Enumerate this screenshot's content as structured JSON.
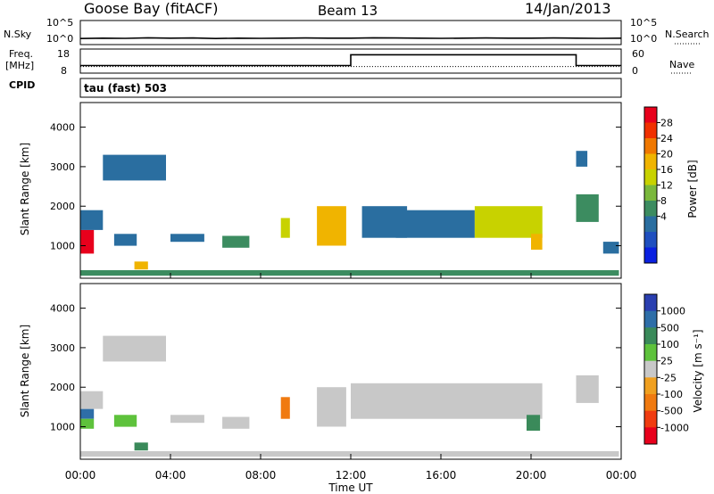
{
  "header": {
    "station": "Goose Bay (fitACF)",
    "beam": "Beam 13",
    "date": "14/Jan/2013"
  },
  "noise_panel": {
    "left_label": "N.Sky",
    "right_label": "N.Search",
    "left_ticks": [
      "10^5",
      "10^0"
    ],
    "right_ticks": [
      "10^5",
      "10^0"
    ]
  },
  "freq_panel": {
    "left_label_1": "Freq.",
    "left_label_2": "[MHz]",
    "right_label": "Nave",
    "left_ticks": [
      "18",
      "8"
    ],
    "right_ticks": [
      "60",
      "0"
    ]
  },
  "cpid": {
    "label": "CPID",
    "value": "tau (fast) 503"
  },
  "colorbars": {
    "power": {
      "label": "Power [dB]",
      "ticks": [
        "28",
        "24",
        "20",
        "16",
        "12",
        "8",
        "4"
      ],
      "colors": [
        "#e8001c",
        "#f03000",
        "#f07800",
        "#f0b400",
        "#c8d200",
        "#7ab83c",
        "#3c8c60",
        "#2a6ea0",
        "#1f4fbf",
        "#0a20e0"
      ]
    },
    "velocity": {
      "label": "Velocity [m s⁻¹]",
      "ticks": [
        "1000",
        "500",
        "100",
        "25",
        "-25",
        "-100",
        "-500",
        "-1000"
      ],
      "colors": [
        "#2a3fb0",
        "#2e6ea8",
        "#3a8a5a",
        "#5ec23c",
        "#c8c8c8",
        "#f0a020",
        "#f07a10",
        "#f03c10",
        "#e8001c"
      ]
    }
  },
  "axes": {
    "ylabel": "Slant Range [km]",
    "yticks": [
      "4000",
      "3000",
      "2000",
      "1000"
    ],
    "xticks": [
      "00:00",
      "04:00",
      "08:00",
      "12:00",
      "16:00",
      "20:00",
      "00:00"
    ],
    "xlabel": "Time UT"
  },
  "chart_data": [
    {
      "type": "line",
      "name": "noise",
      "x_hours": [
        0,
        1,
        2,
        3,
        4,
        5,
        6,
        7,
        8,
        9,
        10,
        11,
        12,
        13,
        14,
        15,
        16,
        17,
        18,
        19,
        20,
        21,
        22,
        23,
        24
      ],
      "n_sky_log10": [
        0.7,
        0.8,
        0.75,
        0.9,
        0.8,
        0.85,
        0.7,
        0.8,
        0.75,
        0.8,
        0.85,
        0.8,
        0.8,
        0.9,
        0.85,
        0.8,
        0.75,
        0.8,
        0.85,
        0.8,
        0.8,
        0.85,
        0.8,
        0.75,
        0.8
      ]
    },
    {
      "type": "line",
      "name": "frequency",
      "x_hours": [
        0,
        12,
        12,
        22,
        22,
        24
      ],
      "freq_mhz": [
        10.5,
        10.5,
        16,
        16,
        10.5,
        10.5
      ],
      "nave": [
        12,
        12,
        12,
        12,
        12,
        12
      ],
      "ylim_freq": [
        8,
        18
      ],
      "ylim_nave": [
        0,
        60
      ]
    },
    {
      "type": "heatmap",
      "name": "power",
      "xlim_hours": [
        0,
        24
      ],
      "ylim_km": [
        200,
        4600
      ],
      "units": "dB",
      "regions": [
        {
          "t0": 0.0,
          "t1": 0.6,
          "r0": 800,
          "r1": 1400,
          "val": 28
        },
        {
          "t0": 0.0,
          "t1": 1.0,
          "r0": 1400,
          "r1": 1900,
          "val": 8
        },
        {
          "t0": 1.0,
          "t1": 3.8,
          "r0": 2650,
          "r1": 3300,
          "val": 8
        },
        {
          "t0": 1.5,
          "t1": 2.5,
          "r0": 1000,
          "r1": 1300,
          "val": 8
        },
        {
          "t0": 2.4,
          "t1": 3.0,
          "r0": 400,
          "r1": 600,
          "val": 20
        },
        {
          "t0": 4.0,
          "t1": 5.5,
          "r0": 1100,
          "r1": 1300,
          "val": 8
        },
        {
          "t0": 6.3,
          "t1": 7.5,
          "r0": 950,
          "r1": 1250,
          "val": 12
        },
        {
          "t0": 8.9,
          "t1": 9.3,
          "r0": 1200,
          "r1": 1700,
          "val": 16
        },
        {
          "t0": 10.5,
          "t1": 11.8,
          "r0": 1000,
          "r1": 2000,
          "val": 20
        },
        {
          "t0": 12.5,
          "t1": 14.5,
          "r0": 1200,
          "r1": 2000,
          "val": 8
        },
        {
          "t0": 14.0,
          "t1": 17.5,
          "r0": 1200,
          "r1": 1900,
          "val": 8
        },
        {
          "t0": 17.5,
          "t1": 20.5,
          "r0": 1200,
          "r1": 2000,
          "val": 16
        },
        {
          "t0": 20.0,
          "t1": 20.5,
          "r0": 900,
          "r1": 1300,
          "val": 20
        },
        {
          "t0": 22.0,
          "t1": 22.5,
          "r0": 3000,
          "r1": 3400,
          "val": 8
        },
        {
          "t0": 22.0,
          "t1": 23.0,
          "r0": 1600,
          "r1": 2300,
          "val": 12
        },
        {
          "t0": 23.2,
          "t1": 23.9,
          "r0": 800,
          "r1": 1100,
          "val": 8
        },
        {
          "t0": 0.0,
          "t1": 23.9,
          "r0": 240,
          "r1": 380,
          "val": 12
        }
      ]
    },
    {
      "type": "heatmap",
      "name": "velocity",
      "xlim_hours": [
        0,
        24
      ],
      "ylim_km": [
        200,
        4600
      ],
      "units": "m s-1",
      "regions": [
        {
          "t0": 0.0,
          "t1": 0.6,
          "r0": 1200,
          "r1": 1450,
          "val": 900
        },
        {
          "t0": 0.0,
          "t1": 0.6,
          "r0": 950,
          "r1": 1200,
          "val": 80
        },
        {
          "t0": 0.0,
          "t1": 1.0,
          "r0": 1450,
          "r1": 1900,
          "val": 0
        },
        {
          "t0": 1.0,
          "t1": 3.8,
          "r0": 2650,
          "r1": 3300,
          "val": 0
        },
        {
          "t0": 1.5,
          "t1": 2.5,
          "r0": 1000,
          "r1": 1300,
          "val": 40
        },
        {
          "t0": 2.4,
          "t1": 3.0,
          "r0": 400,
          "r1": 600,
          "val": 100
        },
        {
          "t0": 4.0,
          "t1": 5.5,
          "r0": 1100,
          "r1": 1300,
          "val": 0
        },
        {
          "t0": 6.3,
          "t1": 7.5,
          "r0": 950,
          "r1": 1250,
          "val": 0
        },
        {
          "t0": 8.9,
          "t1": 9.3,
          "r0": 1200,
          "r1": 1750,
          "val": -400
        },
        {
          "t0": 10.5,
          "t1": 11.8,
          "r0": 1000,
          "r1": 2000,
          "val": 0
        },
        {
          "t0": 12.0,
          "t1": 20.5,
          "r0": 1200,
          "r1": 2100,
          "val": 0
        },
        {
          "t0": 19.8,
          "t1": 20.4,
          "r0": 900,
          "r1": 1300,
          "val": 100
        },
        {
          "t0": 22.0,
          "t1": 23.0,
          "r0": 1600,
          "r1": 2300,
          "val": 0
        },
        {
          "t0": 0.0,
          "t1": 23.9,
          "r0": 240,
          "r1": 380,
          "val": 0
        }
      ]
    }
  ]
}
